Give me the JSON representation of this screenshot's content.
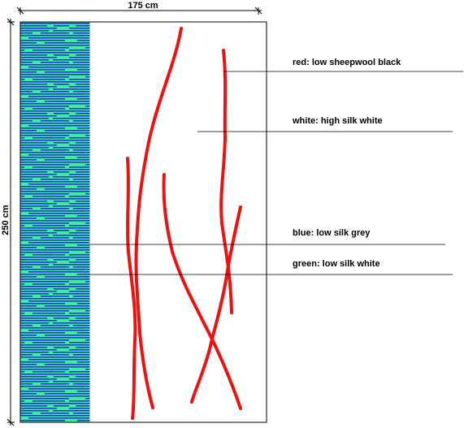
{
  "dimensions": {
    "width": "175 cm",
    "height": "250 cm"
  },
  "labels": [
    "red: low sheepwool black",
    "white: high silk white",
    "blue: low silk grey",
    "green: low silk white"
  ]
}
